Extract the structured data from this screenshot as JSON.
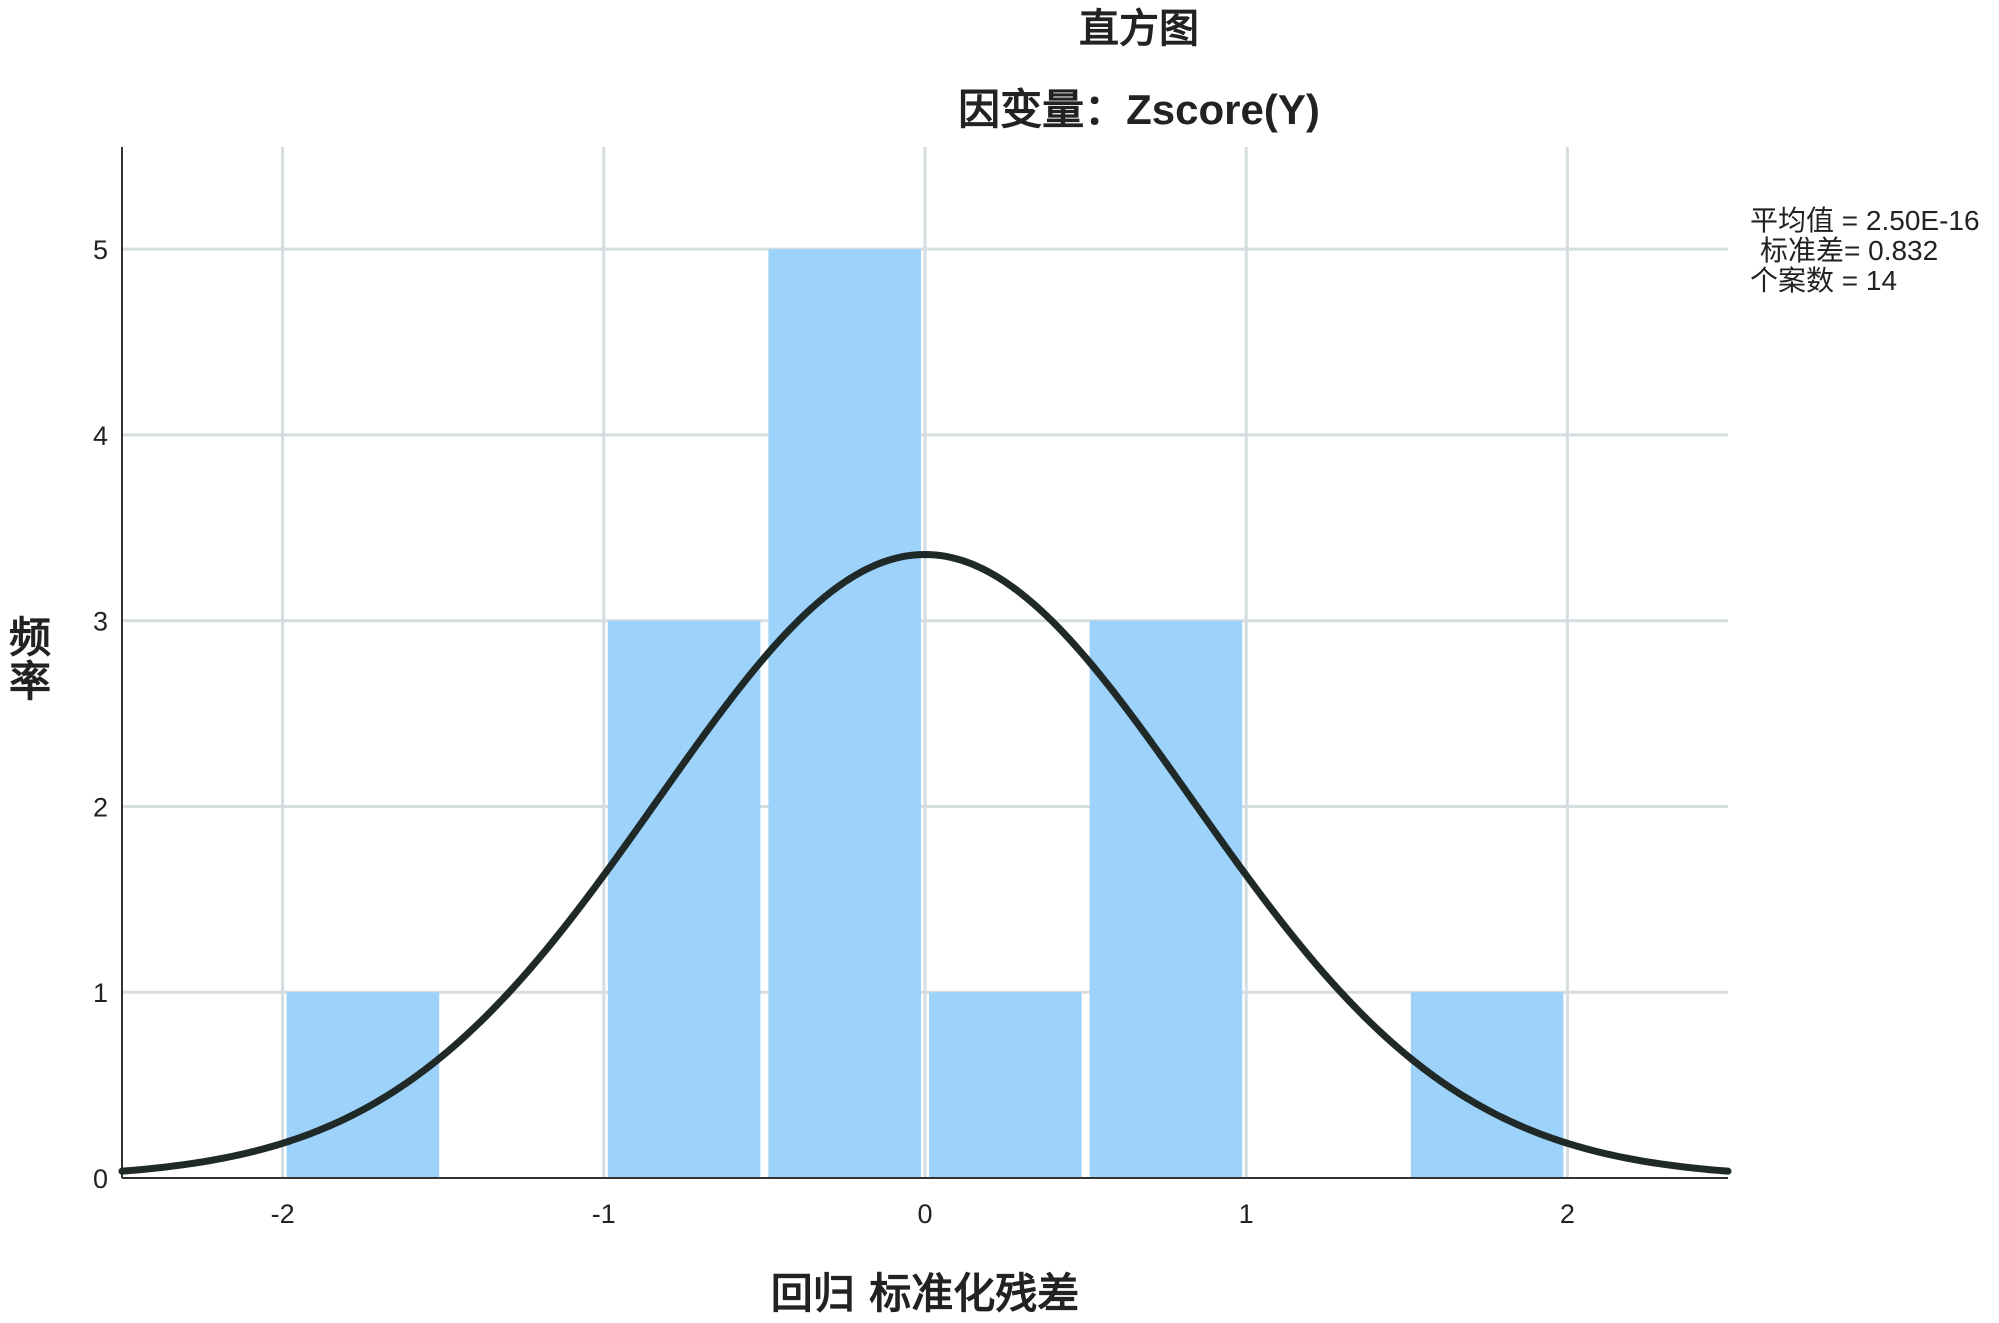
{
  "chart_data": {
    "type": "bar",
    "title": "直方图",
    "subtitle": "因变量：Zscore(Y)",
    "xlabel": "回归 标准化残差",
    "ylabel": "频率",
    "xlim": [
      -2.5,
      2.5
    ],
    "ylim": [
      0,
      5.55
    ],
    "x_ticks": [
      "-2",
      "-1",
      "0",
      "1",
      "2"
    ],
    "y_ticks": [
      "0",
      "1",
      "2",
      "3",
      "4",
      "5"
    ],
    "bin_width": 0.5,
    "bins": [
      {
        "start": -2.0,
        "end": -1.5,
        "count": 1
      },
      {
        "start": -1.0,
        "end": -0.5,
        "count": 3
      },
      {
        "start": -0.5,
        "end": 0.0,
        "count": 5
      },
      {
        "start": 0.0,
        "end": 0.5,
        "count": 1
      },
      {
        "start": 0.5,
        "end": 1.0,
        "count": 3
      },
      {
        "start": 1.5,
        "end": 2.0,
        "count": 1
      }
    ],
    "normal_curve": {
      "mean": 2.5e-16,
      "std": 0.832,
      "n": 14
    },
    "grid": true,
    "bar_color": "#9dd3fa",
    "curve_color": "#1f2a28",
    "grid_color": "#d5dde0",
    "stats": {
      "mean": "平均值 = 2.50E-16",
      "std": "标准差= 0.832",
      "n": "个案数 = 14"
    }
  }
}
